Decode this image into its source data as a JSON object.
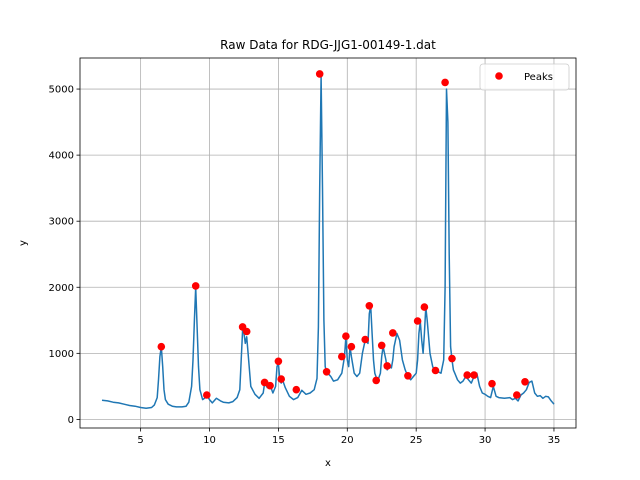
{
  "chart_data": {
    "type": "line",
    "title": "Raw Data for RDG-JJG1-00149-1.dat",
    "xlabel": "x",
    "ylabel": "y",
    "xlim": [
      0.6,
      36.6
    ],
    "ylim": [
      -130,
      5470
    ],
    "xticks": [
      5,
      10,
      15,
      20,
      25,
      30,
      35
    ],
    "yticks": [
      0,
      1000,
      2000,
      3000,
      4000,
      5000
    ],
    "grid": true,
    "legend": {
      "placement": "top-right",
      "entries": [
        "Peaks"
      ]
    },
    "colors": {
      "line": "#1f77b4",
      "peaks": "#ff0000",
      "grid": "#b0b0b0"
    },
    "series": [
      {
        "type": "line",
        "x": [
          2.2,
          2.6,
          3.0,
          3.4,
          3.8,
          4.2,
          4.6,
          5.0,
          5.4,
          5.8,
          6.0,
          6.2,
          6.3,
          6.4,
          6.5,
          6.6,
          6.7,
          6.8,
          7.0,
          7.3,
          7.6,
          8.0,
          8.3,
          8.5,
          8.7,
          8.8,
          8.9,
          9.0,
          9.1,
          9.2,
          9.3,
          9.5,
          9.7,
          9.8,
          10.0,
          10.2,
          10.5,
          10.8,
          11.0,
          11.4,
          11.7,
          12.0,
          12.2,
          12.3,
          12.4,
          12.5,
          12.6,
          12.7,
          12.8,
          13.0,
          13.3,
          13.6,
          13.9,
          14.0,
          14.2,
          14.4,
          14.6,
          14.8,
          14.9,
          15.0,
          15.1,
          15.2,
          15.3,
          15.5,
          15.8,
          16.1,
          16.4,
          16.7,
          17.0,
          17.3,
          17.6,
          17.8,
          17.9,
          18.0,
          18.1,
          18.2,
          18.3,
          18.4,
          18.5,
          18.8,
          19.0,
          19.3,
          19.6,
          19.8,
          19.9,
          20.0,
          20.1,
          20.2,
          20.3,
          20.5,
          20.7,
          20.9,
          21.1,
          21.3,
          21.5,
          21.6,
          21.7,
          21.8,
          21.9,
          22.0,
          22.2,
          22.4,
          22.5,
          22.6,
          22.8,
          22.9,
          23.0,
          23.2,
          23.3,
          23.4,
          23.6,
          23.8,
          24.0,
          24.2,
          24.4,
          24.6,
          24.8,
          25.0,
          25.1,
          25.2,
          25.3,
          25.4,
          25.5,
          25.6,
          25.7,
          25.8,
          26.0,
          26.2,
          26.4,
          26.6,
          26.8,
          27.0,
          27.1,
          27.2,
          27.3,
          27.4,
          27.5,
          27.6,
          27.7,
          27.8,
          28.0,
          28.2,
          28.4,
          28.6,
          28.8,
          29.0,
          29.2,
          29.4,
          29.6,
          29.8,
          30.0,
          30.2,
          30.4,
          30.6,
          30.8,
          31.0,
          31.4,
          31.8,
          32.0,
          32.2,
          32.4,
          32.6,
          32.8,
          33.0,
          33.2,
          33.4,
          33.6,
          33.8,
          34.0,
          34.2,
          34.4,
          34.6,
          34.8,
          35.0
        ],
        "y": [
          290,
          280,
          260,
          250,
          230,
          210,
          200,
          180,
          170,
          180,
          220,
          330,
          600,
          950,
          1100,
          800,
          450,
          300,
          230,
          200,
          190,
          190,
          200,
          260,
          500,
          900,
          1500,
          2000,
          1400,
          800,
          450,
          300,
          330,
          360,
          300,
          250,
          320,
          280,
          260,
          250,
          270,
          330,
          450,
          900,
          1350,
          1300,
          1150,
          1250,
          1000,
          500,
          380,
          320,
          400,
          550,
          480,
          520,
          400,
          500,
          800,
          850,
          600,
          550,
          600,
          480,
          350,
          300,
          330,
          440,
          380,
          400,
          450,
          620,
          1400,
          3500,
          5200,
          3500,
          1500,
          800,
          720,
          650,
          580,
          600,
          700,
          950,
          1250,
          900,
          800,
          1100,
          950,
          700,
          650,
          700,
          1000,
          1200,
          1150,
          1600,
          1720,
          1300,
          900,
          700,
          580,
          700,
          950,
          1100,
          900,
          750,
          800,
          780,
          900,
          1100,
          1300,
          1200,
          900,
          750,
          650,
          600,
          650,
          700,
          900,
          1300,
          1480,
          1200,
          1000,
          1300,
          1700,
          1500,
          1000,
          800,
          700,
          720,
          700,
          900,
          2000,
          5000,
          4500,
          2500,
          1100,
          900,
          750,
          700,
          600,
          550,
          580,
          650,
          600,
          550,
          650,
          700,
          500,
          400,
          380,
          350,
          330,
          500,
          350,
          330,
          320,
          330,
          300,
          320,
          280,
          370,
          400,
          450,
          560,
          580,
          400,
          350,
          360,
          320,
          350,
          340,
          280,
          230
        ]
      },
      {
        "type": "scatter",
        "name": "Peaks",
        "x": [
          6.5,
          9.0,
          9.8,
          12.4,
          12.7,
          14.0,
          14.4,
          15.0,
          15.2,
          16.3,
          18.0,
          18.5,
          19.6,
          19.9,
          20.3,
          21.3,
          21.6,
          22.1,
          22.5,
          22.9,
          23.3,
          24.4,
          25.1,
          25.6,
          26.4,
          27.1,
          27.6,
          28.7,
          29.2,
          30.5,
          32.3,
          32.9
        ],
        "y": [
          1100,
          2020,
          370,
          1400,
          1330,
          560,
          510,
          880,
          610,
          450,
          5230,
          720,
          950,
          1260,
          1100,
          1210,
          1720,
          590,
          1120,
          810,
          1310,
          660,
          1490,
          1700,
          740,
          5100,
          920,
          670,
          670,
          540,
          370,
          570
        ]
      }
    ]
  }
}
